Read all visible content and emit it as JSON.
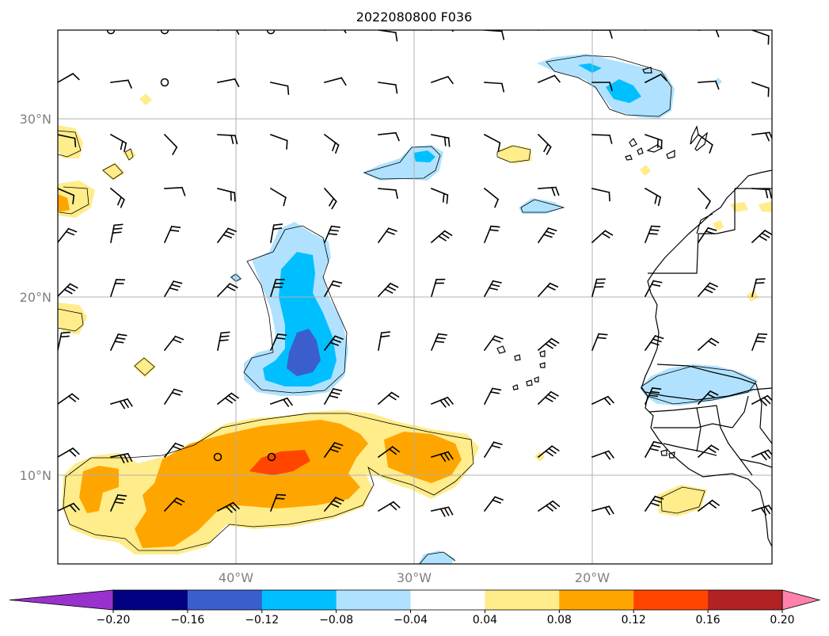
{
  "title": "2022080800 F036",
  "map": {
    "lon_range": [
      -50,
      -10
    ],
    "lat_range": [
      5,
      35
    ],
    "lat_gridlines": [
      10,
      20,
      30
    ],
    "lon_gridlines": [
      -40,
      -30,
      -20
    ],
    "lat_labels": [
      {
        "value": 10,
        "text": "10°N"
      },
      {
        "value": 20,
        "text": "20°N"
      },
      {
        "value": 30,
        "text": "30°N"
      }
    ],
    "lon_labels": [
      {
        "value": -40,
        "text": "40°W"
      },
      {
        "value": -30,
        "text": "30°W"
      },
      {
        "value": -20,
        "text": "20°W"
      }
    ],
    "grid": true
  },
  "colorbar": {
    "extend": "both",
    "bounds": [
      -0.24,
      -0.2,
      -0.16,
      -0.12,
      -0.08,
      -0.04,
      0.04,
      0.08,
      0.12,
      0.16,
      0.2,
      0.24
    ],
    "colors": [
      "#9932cc",
      "#000080",
      "#3a5fcd",
      "#00bfff",
      "#b0e2ff",
      "#ffffff",
      "#ffec8b",
      "#ffa500",
      "#ff4500",
      "#b22222",
      "#ff82ab"
    ],
    "tick_labels": [
      "−0.20",
      "−0.16",
      "−0.12",
      "−0.08",
      "−0.04",
      "0.04",
      "0.08",
      "0.12",
      "0.16",
      "0.20"
    ]
  },
  "colors": {
    "very_light_blue": "#b0e2ff",
    "light_blue": "#00bfff",
    "medium_blue": "#3a5fcd",
    "light_yellow": "#ffec8b",
    "orange": "#ffa500",
    "red_orange": "#ff4500"
  }
}
